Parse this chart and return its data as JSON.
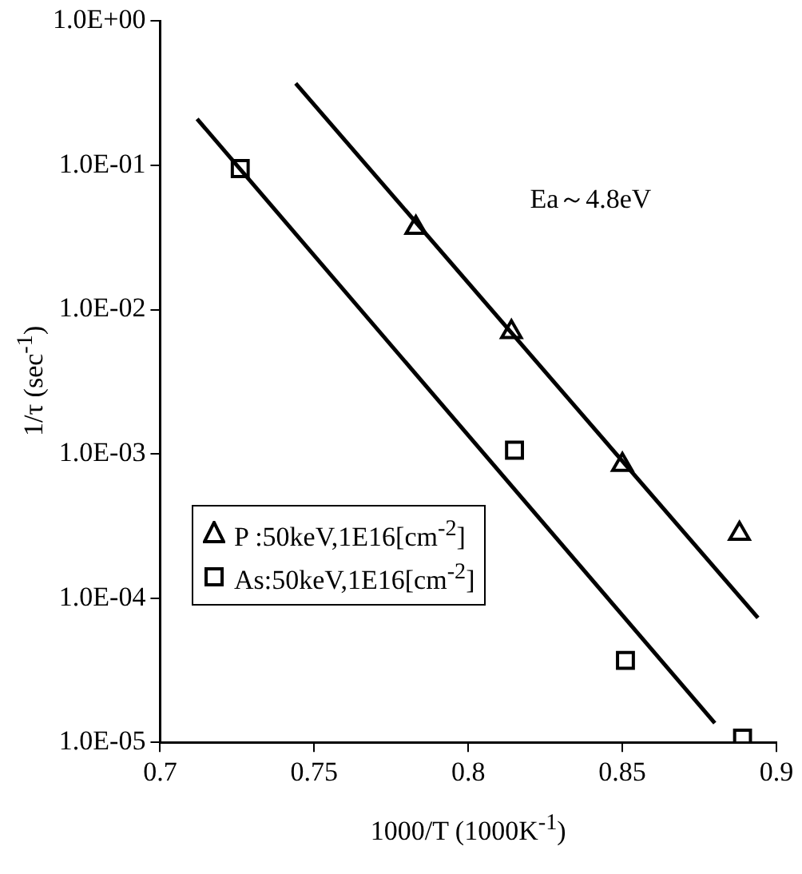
{
  "chart_data": {
    "type": "scatter",
    "xlabel": "1000/T (1000K$^{-1}$)",
    "ylabel": "1/τ (sec$^{-1}$)",
    "annotations": [
      "Ea～4.8eV"
    ],
    "series": [
      {
        "name": "P :50keV,1E16[cm$^{-2}$]",
        "color": "#000000",
        "marker": "triangle",
        "x": [
          0.783,
          0.814,
          0.85,
          0.888
        ],
        "values": [
          0.037,
          0.007,
          0.00084,
          0.00028
        ]
      },
      {
        "name": "As:50keV,1E16[cm$^{-2}$]",
        "color": "#000000",
        "marker": "square",
        "x": [
          0.726,
          0.815,
          0.851,
          0.889
        ],
        "values": [
          0.095,
          0.00106,
          3.7e-05,
          1.07e-05
        ]
      },
      {
        "type": "line",
        "color": "#000000",
        "marker": "none",
        "x": [
          0.744,
          0.894
        ],
        "values": [
          0.37,
          7.3e-05
        ]
      },
      {
        "type": "line",
        "color": "#000000",
        "marker": "none",
        "x": [
          0.712,
          0.88
        ],
        "values": [
          0.21,
          1.36e-05
        ]
      }
    ],
    "log": "y",
    "xlim": [
      0.7,
      0.9
    ],
    "xticks": [
      0.7,
      0.75,
      0.8,
      0.85,
      0.9
    ],
    "ylim": [
      1e-05,
      1
    ],
    "yticks": [
      {
        "value": 1,
        "label": "1.0E+00"
      },
      {
        "value": 0.1,
        "label": "1.0E-01"
      },
      {
        "value": 0.01,
        "label": "1.0E-02"
      },
      {
        "value": 0.001,
        "label": "1.0E-03"
      },
      {
        "value": 0.0001,
        "label": "1.0E-04"
      },
      {
        "value": 1e-05,
        "label": "1.0E-05"
      }
    ],
    "grid": false,
    "legend": "bottom left"
  }
}
